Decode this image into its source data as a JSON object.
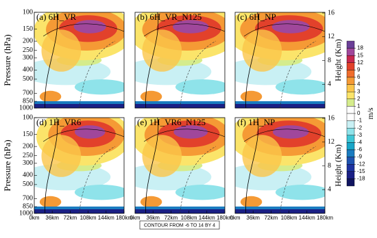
{
  "panels": [
    {
      "title": "(a) 6H_VR"
    },
    {
      "title": "(b) 6H_VR_N125"
    },
    {
      "title": "(c) 6H_NP"
    },
    {
      "title": "(d) 1H_VR6"
    },
    {
      "title": "(e) 1H_VR6_N125"
    },
    {
      "title": "(f) 1H_NP"
    }
  ],
  "y_label": "Pressure (hPa)",
  "y2_label": "Height (Km)",
  "ylim": [
    100,
    1000
  ],
  "y_log": true,
  "yticks": [
    100,
    150,
    200,
    250,
    300,
    400,
    500,
    700,
    850,
    1000
  ],
  "y2ticks": [
    4,
    8,
    12,
    16
  ],
  "xlim": [
    0,
    180
  ],
  "xticks": [
    {
      "value": 0,
      "label": "0km"
    },
    {
      "value": 36,
      "label": "36km"
    },
    {
      "value": 72,
      "label": "72km"
    },
    {
      "value": 108,
      "label": "108km"
    },
    {
      "value": 144,
      "label": "144km"
    },
    {
      "value": 180,
      "label": "180km"
    }
  ],
  "colorbar": {
    "label": "m/s",
    "levels": [
      18,
      15,
      12,
      9,
      6,
      4,
      3,
      2,
      1,
      0,
      -1,
      -2,
      -3,
      -4,
      -6,
      -9,
      -12,
      -15,
      -18
    ],
    "colors": [
      "#6b3f98",
      "#a0479b",
      "#c8284f",
      "#e2412b",
      "#f06d2c",
      "#f59a35",
      "#fbc54a",
      "#fbe46a",
      "#d5ec8c",
      "#ffffff",
      "#ffffff",
      "#c9f0f4",
      "#8fe3ea",
      "#3fc7d6",
      "#19a6c8",
      "#1a7cc0",
      "#1f53b0",
      "#1e33a0",
      "#1a1f85",
      "#101460"
    ]
  },
  "note": "CONTOUR FROM -6 TO 14 BY 4"
}
